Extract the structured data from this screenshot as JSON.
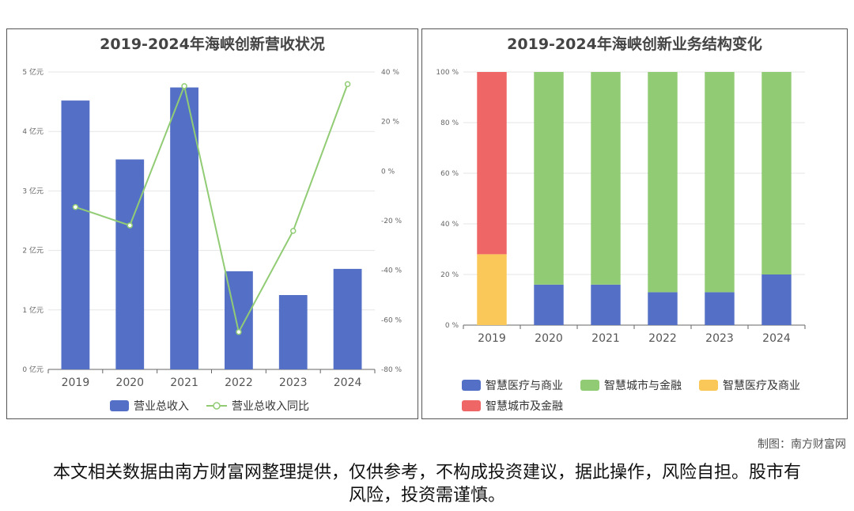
{
  "credit": "制图：南方财富网",
  "disclaimer": "本文相关数据由南方财富网整理提供，仅供参考，不构成投资建议，据此操作，风险自担。股市有风险，投资需谨慎。",
  "chart_data": [
    {
      "type": "bar",
      "title": "2019-2024年海峡创新营收状况",
      "categories": [
        "2019",
        "2020",
        "2021",
        "2022",
        "2023",
        "2024"
      ],
      "series": [
        {
          "name": "营业总收入",
          "type": "bar",
          "axis": "left",
          "color": "#5470c6",
          "values": [
            4.52,
            3.53,
            4.74,
            1.65,
            1.25,
            1.69
          ]
        },
        {
          "name": "营业总收入同比",
          "type": "line",
          "axis": "right",
          "color": "#91cc75",
          "values": [
            -14.5,
            -21.9,
            34.3,
            -64.9,
            -24.1,
            35.1
          ]
        }
      ],
      "y_left": {
        "unit": "亿元",
        "ylim": [
          0,
          5
        ],
        "ticks": [
          "0 亿元",
          "1 亿元",
          "2 亿元",
          "3 亿元",
          "4 亿元",
          "5 亿元"
        ]
      },
      "y_right": {
        "unit": "%",
        "ylim": [
          -80,
          40
        ],
        "ticks": [
          "-80 %",
          "-60 %",
          "-40 %",
          "-20 %",
          "0 %",
          "20 %",
          "40 %"
        ]
      },
      "grid": true,
      "legend": "bottom"
    },
    {
      "type": "bar",
      "stacked": true,
      "title": "2019-2024年海峡创新业务结构变化",
      "categories": [
        "2019",
        "2020",
        "2021",
        "2022",
        "2023",
        "2024"
      ],
      "series": [
        {
          "name": "智慧医疗与商业",
          "color": "#5470c6",
          "values": [
            0,
            16,
            16,
            13,
            13,
            20
          ]
        },
        {
          "name": "智慧城市与金融",
          "color": "#91cc75",
          "values": [
            0,
            84,
            84,
            87,
            87,
            80
          ]
        },
        {
          "name": "智慧医疗及商业",
          "color": "#fac858",
          "values": [
            28,
            0,
            0,
            0,
            0,
            0
          ]
        },
        {
          "name": "智慧城市及金融",
          "color": "#ee6666",
          "values": [
            72,
            0,
            0,
            0,
            0,
            0
          ]
        }
      ],
      "y": {
        "unit": "%",
        "ylim": [
          0,
          100
        ],
        "ticks": [
          "0 %",
          "20 %",
          "40 %",
          "60 %",
          "80 %",
          "100 %"
        ]
      },
      "grid": true,
      "legend": "bottom"
    }
  ]
}
